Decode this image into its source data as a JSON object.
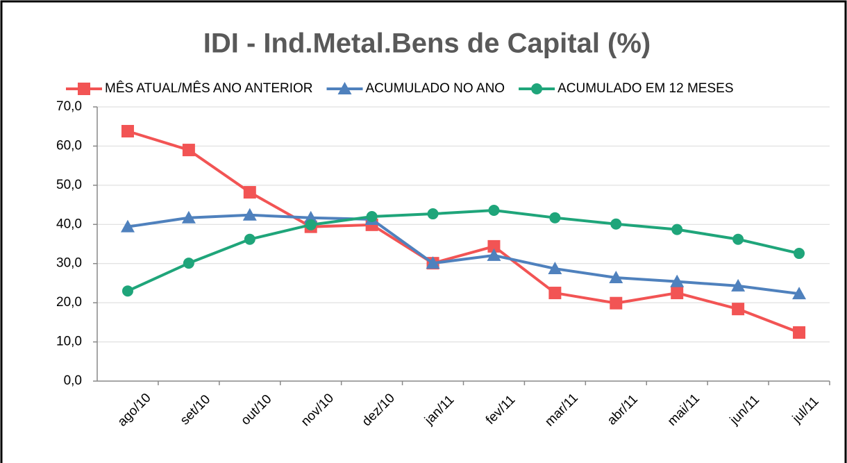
{
  "chart_data": {
    "type": "line",
    "title": "IDI - Ind.Metal.Bens de Capital (%)",
    "categories": [
      "ago/10",
      "set/10",
      "out/10",
      "nov/10",
      "dez/10",
      "jan/11",
      "fev/11",
      "mar/11",
      "abr/11",
      "mai/11",
      "jun/11",
      "jul/11"
    ],
    "series": [
      {
        "name": "MÊS ATUAL/MÊS ANO ANTERIOR",
        "color": "#f25454",
        "marker": "square",
        "values": [
          63.8,
          59.0,
          48.2,
          39.4,
          39.9,
          30.1,
          34.4,
          22.5,
          19.9,
          22.5,
          18.4,
          12.4
        ]
      },
      {
        "name": "ACUMULADO NO ANO",
        "color": "#4f81bd",
        "marker": "triangle",
        "values": [
          39.4,
          41.7,
          42.4,
          41.7,
          41.3,
          30.1,
          32.1,
          28.7,
          26.4,
          25.4,
          24.3,
          22.3
        ]
      },
      {
        "name": "ACUMULADO EM 12 MESES",
        "color": "#1fa57a",
        "marker": "circle",
        "values": [
          23.0,
          30.1,
          36.2,
          39.9,
          42.0,
          42.7,
          43.6,
          41.7,
          40.1,
          38.7,
          36.2,
          32.6
        ]
      }
    ],
    "ylim": [
      0,
      70
    ],
    "yticks": [
      {
        "value": 0,
        "label": "0,0"
      },
      {
        "value": 10,
        "label": "10,0"
      },
      {
        "value": 20,
        "label": "20,0"
      },
      {
        "value": 30,
        "label": "30,0"
      },
      {
        "value": 40,
        "label": "40,0"
      },
      {
        "value": 50,
        "label": "50,0"
      },
      {
        "value": 60,
        "label": "60,0"
      },
      {
        "value": 70,
        "label": "70,0"
      }
    ],
    "grid": true,
    "legend": "top"
  }
}
